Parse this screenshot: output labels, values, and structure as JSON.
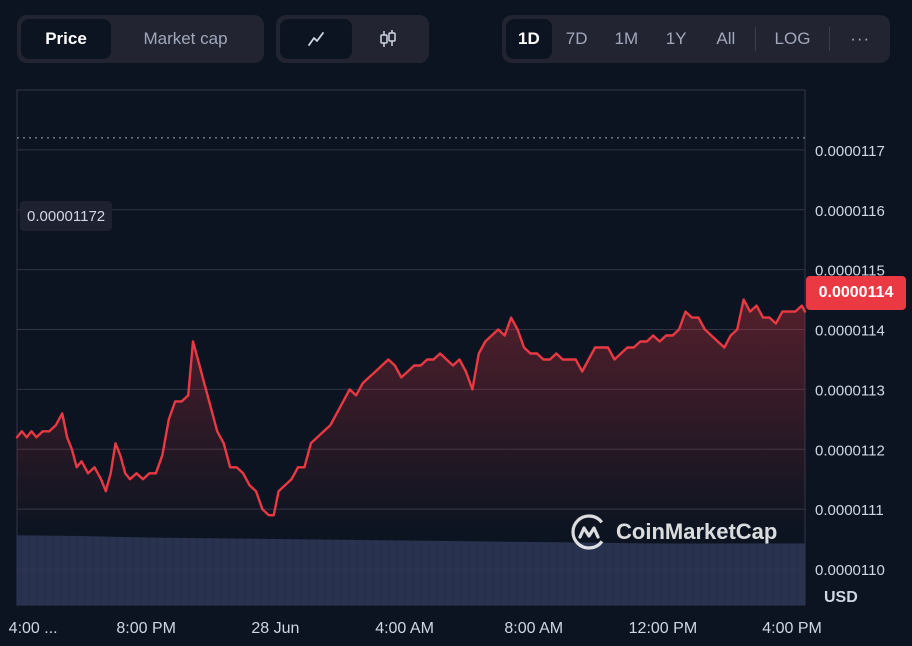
{
  "toolbar": {
    "metric_tabs": [
      {
        "label": "Price",
        "active": true
      },
      {
        "label": "Market cap",
        "active": false
      }
    ],
    "chart_types": [
      {
        "icon": "line-chart-icon",
        "active": true
      },
      {
        "icon": "candlestick-icon",
        "active": false
      }
    ],
    "ranges": [
      {
        "label": "1D",
        "active": true
      },
      {
        "label": "7D",
        "active": false
      },
      {
        "label": "1M",
        "active": false
      },
      {
        "label": "1Y",
        "active": false
      },
      {
        "label": "All",
        "active": false
      }
    ],
    "log_label": "LOG",
    "more_label": "···"
  },
  "chart_data": {
    "type": "line",
    "currency": "USD",
    "high_label": "0.00001172",
    "current_price_label": "0.0000114",
    "current_price": 1.142e-05,
    "y_ticks": [
      {
        "value": 1.17e-05,
        "label": "0.0000117"
      },
      {
        "value": 1.16e-05,
        "label": "0.0000116"
      },
      {
        "value": 1.15e-05,
        "label": "0.0000115"
      },
      {
        "value": 1.14e-05,
        "label": "0.0000114"
      },
      {
        "value": 1.13e-05,
        "label": "0.0000113"
      },
      {
        "value": 1.12e-05,
        "label": "0.0000112"
      },
      {
        "value": 1.11e-05,
        "label": "0.0000111"
      },
      {
        "value": 1.1e-05,
        "label": "0.0000110"
      }
    ],
    "x_ticks": [
      {
        "t": 0.5,
        "label": "4:00 ..."
      },
      {
        "t": 4,
        "label": "8:00 PM"
      },
      {
        "t": 8,
        "label": "28 Jun"
      },
      {
        "t": 12,
        "label": "4:00 AM"
      },
      {
        "t": 16,
        "label": "8:00 AM"
      },
      {
        "t": 20,
        "label": "12:00 PM"
      },
      {
        "t": 24,
        "label": "4:00 PM"
      }
    ],
    "x_range": [
      0,
      24.4
    ],
    "y_range": [
      1.094e-05,
      1.18e-05
    ],
    "line_color": "#ea3943",
    "price_series": [
      [
        0.0,
        1.122e-05
      ],
      [
        0.15,
        1.123e-05
      ],
      [
        0.3,
        1.122e-05
      ],
      [
        0.45,
        1.123e-05
      ],
      [
        0.6,
        1.122e-05
      ],
      [
        0.8,
        1.123e-05
      ],
      [
        1.0,
        1.123e-05
      ],
      [
        1.2,
        1.124e-05
      ],
      [
        1.4,
        1.126e-05
      ],
      [
        1.55,
        1.122e-05
      ],
      [
        1.7,
        1.12e-05
      ],
      [
        1.85,
        1.117e-05
      ],
      [
        2.0,
        1.118e-05
      ],
      [
        2.2,
        1.116e-05
      ],
      [
        2.4,
        1.117e-05
      ],
      [
        2.6,
        1.115e-05
      ],
      [
        2.75,
        1.113e-05
      ],
      [
        2.9,
        1.116e-05
      ],
      [
        3.05,
        1.121e-05
      ],
      [
        3.2,
        1.119e-05
      ],
      [
        3.35,
        1.116e-05
      ],
      [
        3.5,
        1.115e-05
      ],
      [
        3.7,
        1.116e-05
      ],
      [
        3.9,
        1.115e-05
      ],
      [
        4.1,
        1.116e-05
      ],
      [
        4.3,
        1.116e-05
      ],
      [
        4.5,
        1.119e-05
      ],
      [
        4.7,
        1.125e-05
      ],
      [
        4.9,
        1.128e-05
      ],
      [
        5.1,
        1.128e-05
      ],
      [
        5.3,
        1.129e-05
      ],
      [
        5.45,
        1.138e-05
      ],
      [
        5.6,
        1.135e-05
      ],
      [
        5.8,
        1.131e-05
      ],
      [
        6.0,
        1.127e-05
      ],
      [
        6.2,
        1.123e-05
      ],
      [
        6.4,
        1.121e-05
      ],
      [
        6.6,
        1.117e-05
      ],
      [
        6.8,
        1.117e-05
      ],
      [
        7.0,
        1.116e-05
      ],
      [
        7.2,
        1.114e-05
      ],
      [
        7.4,
        1.113e-05
      ],
      [
        7.6,
        1.11e-05
      ],
      [
        7.8,
        1.109e-05
      ],
      [
        7.95,
        1.109e-05
      ],
      [
        8.1,
        1.113e-05
      ],
      [
        8.3,
        1.114e-05
      ],
      [
        8.5,
        1.115e-05
      ],
      [
        8.7,
        1.117e-05
      ],
      [
        8.9,
        1.117e-05
      ],
      [
        9.1,
        1.121e-05
      ],
      [
        9.3,
        1.122e-05
      ],
      [
        9.5,
        1.123e-05
      ],
      [
        9.7,
        1.124e-05
      ],
      [
        9.9,
        1.126e-05
      ],
      [
        10.1,
        1.128e-05
      ],
      [
        10.3,
        1.13e-05
      ],
      [
        10.5,
        1.129e-05
      ],
      [
        10.7,
        1.131e-05
      ],
      [
        10.9,
        1.132e-05
      ],
      [
        11.1,
        1.133e-05
      ],
      [
        11.3,
        1.134e-05
      ],
      [
        11.5,
        1.135e-05
      ],
      [
        11.7,
        1.134e-05
      ],
      [
        11.9,
        1.132e-05
      ],
      [
        12.1,
        1.133e-05
      ],
      [
        12.3,
        1.134e-05
      ],
      [
        12.5,
        1.134e-05
      ],
      [
        12.7,
        1.135e-05
      ],
      [
        12.9,
        1.135e-05
      ],
      [
        13.1,
        1.136e-05
      ],
      [
        13.3,
        1.135e-05
      ],
      [
        13.5,
        1.134e-05
      ],
      [
        13.7,
        1.135e-05
      ],
      [
        13.9,
        1.133e-05
      ],
      [
        14.1,
        1.13e-05
      ],
      [
        14.3,
        1.136e-05
      ],
      [
        14.5,
        1.138e-05
      ],
      [
        14.7,
        1.139e-05
      ],
      [
        14.9,
        1.14e-05
      ],
      [
        15.1,
        1.139e-05
      ],
      [
        15.3,
        1.142e-05
      ],
      [
        15.5,
        1.14e-05
      ],
      [
        15.7,
        1.137e-05
      ],
      [
        15.9,
        1.136e-05
      ],
      [
        16.1,
        1.136e-05
      ],
      [
        16.3,
        1.135e-05
      ],
      [
        16.5,
        1.135e-05
      ],
      [
        16.7,
        1.136e-05
      ],
      [
        16.9,
        1.135e-05
      ],
      [
        17.1,
        1.135e-05
      ],
      [
        17.3,
        1.135e-05
      ],
      [
        17.5,
        1.133e-05
      ],
      [
        17.7,
        1.135e-05
      ],
      [
        17.9,
        1.137e-05
      ],
      [
        18.1,
        1.137e-05
      ],
      [
        18.3,
        1.137e-05
      ],
      [
        18.5,
        1.135e-05
      ],
      [
        18.7,
        1.136e-05
      ],
      [
        18.9,
        1.137e-05
      ],
      [
        19.1,
        1.137e-05
      ],
      [
        19.3,
        1.138e-05
      ],
      [
        19.5,
        1.138e-05
      ],
      [
        19.7,
        1.139e-05
      ],
      [
        19.9,
        1.138e-05
      ],
      [
        20.1,
        1.139e-05
      ],
      [
        20.3,
        1.139e-05
      ],
      [
        20.5,
        1.14e-05
      ],
      [
        20.7,
        1.143e-05
      ],
      [
        20.9,
        1.142e-05
      ],
      [
        21.1,
        1.142e-05
      ],
      [
        21.3,
        1.14e-05
      ],
      [
        21.5,
        1.139e-05
      ],
      [
        21.7,
        1.138e-05
      ],
      [
        21.9,
        1.137e-05
      ],
      [
        22.1,
        1.139e-05
      ],
      [
        22.3,
        1.14e-05
      ],
      [
        22.5,
        1.145e-05
      ],
      [
        22.7,
        1.143e-05
      ],
      [
        22.9,
        1.144e-05
      ],
      [
        23.1,
        1.142e-05
      ],
      [
        23.3,
        1.142e-05
      ],
      [
        23.5,
        1.141e-05
      ],
      [
        23.7,
        1.143e-05
      ],
      [
        23.9,
        1.143e-05
      ],
      [
        24.1,
        1.143e-05
      ],
      [
        24.3,
        1.144e-05
      ],
      [
        24.4,
        1.143e-05
      ]
    ],
    "volume_series": [
      [
        0,
        0.93
      ],
      [
        2,
        0.92
      ],
      [
        4,
        0.9
      ],
      [
        6,
        0.89
      ],
      [
        8,
        0.88
      ],
      [
        10,
        0.87
      ],
      [
        12,
        0.86
      ],
      [
        14,
        0.85
      ],
      [
        16,
        0.84
      ],
      [
        18,
        0.83
      ],
      [
        20,
        0.82
      ],
      [
        22,
        0.82
      ],
      [
        24.4,
        0.82
      ]
    ]
  },
  "watermark": {
    "text": "CoinMarketCap",
    "icon": "coinmarketcap-logo-icon"
  }
}
